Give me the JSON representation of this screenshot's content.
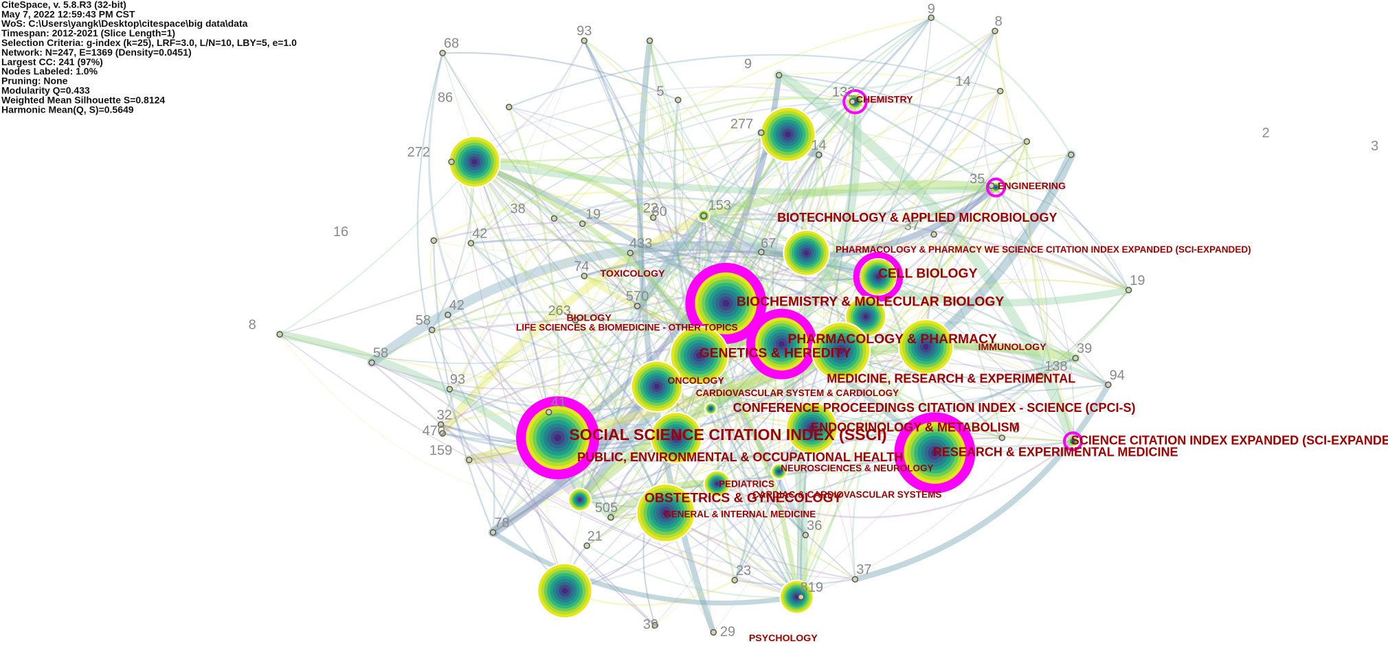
{
  "header": {
    "lines": [
      "CiteSpace, v. 5.8.R3 (32-bit)",
      "May 7, 2022 12:59:43 PM CST",
      "WoS: C:\\Users\\yangk\\Desktop\\citespace\\big data\\data",
      "Timespan: 2012-2021 (Slice Length=1)",
      "Selection Criteria: g-index (k=25), LRF=3.0, L/N=10, LBY=5, e=1.0",
      "Network: N=247, E=1369 (Density=0.0451)",
      "Largest CC: 241 (97%)",
      "Nodes Labeled: 1.0%",
      "Pruning: None",
      "Modularity Q=0.433",
      "Weighted Mean Silhouette S=0.8124",
      "Harmonic Mean(Q, S)=0.5649"
    ]
  },
  "categories": [
    "CHEMISTRY",
    "ENGINEERING",
    "BIOTECHNOLOGY & APPLIED MICROBIOLOGY",
    "PHARMACOLOGY & PHARMACY WE SCIENCE CITATION INDEX EXPANDED (SCI-EXPANDED)",
    "CELL BIOLOGY",
    "TOXICOLOGY",
    "BIOCHEMISTRY & MOLECULAR BIOLOGY",
    "BIOLOGY",
    "LIFE SCIENCES & BIOMEDICINE - OTHER TOPICS",
    "PHARMACOLOGY & PHARMACY",
    "IMMUNOLOGY",
    "GENETICS & HEREDITY",
    "MEDICINE, RESEARCH & EXPERIMENTAL",
    "ONCOLOGY",
    "CARDIOVASCULAR SYSTEM & CARDIOLOGY",
    "CONFERENCE PROCEEDINGS CITATION INDEX - SCIENCE (CPCI-S)",
    "ENDOCRINOLOGY & METABOLISM",
    "SOCIAL SCIENCE CITATION INDEX (SSCI)",
    "SCIENCE CITATION INDEX EXPANDED (SCI-EXPANDED)",
    "RESEARCH & EXPERIMENTAL MEDICINE",
    "PUBLIC, ENVIRONMENTAL & OCCUPATIONAL HEALTH",
    "NEUROSCIENCES & NEUROLOGY",
    "PEDIATRICS",
    "CARDIAC & CARDIOVASCULAR SYSTEMS",
    "OBSTETRICS & GYNECOLOGY",
    "GENERAL & INTERNAL MEDICINE",
    "PSYCHOLOGY"
  ],
  "node_labels": [
    "68",
    "93",
    "9",
    "9",
    "8",
    "86",
    "5",
    "132",
    "277",
    "14",
    "14",
    "2",
    "3",
    "272",
    "35",
    "153",
    "38",
    "19",
    "22",
    "80",
    "37",
    "16",
    "42",
    "67",
    "433",
    "19",
    "74",
    "570",
    "42",
    "263",
    "58",
    "8",
    "39",
    "58",
    "138",
    "94",
    "93",
    "41",
    "32",
    "470",
    "9",
    "159",
    "78",
    "505",
    "36",
    "21",
    "23",
    "37",
    "819",
    "39",
    "29"
  ]
}
